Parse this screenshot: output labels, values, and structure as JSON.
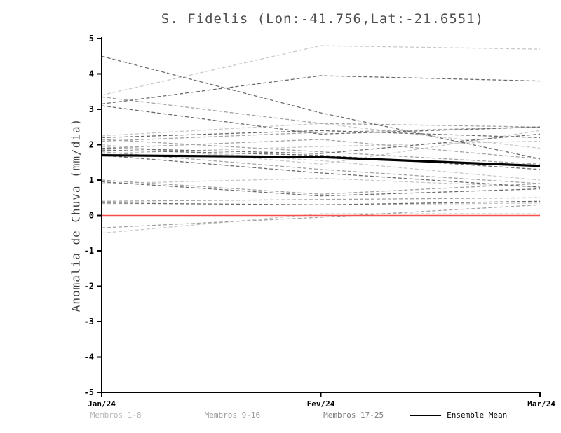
{
  "title": "S. Fidelis (Lon:-41.756,Lat:-21.6551)",
  "chart_data": {
    "type": "line",
    "title": "S. Fidelis (Lon:-41.756,Lat:-21.6551)",
    "ylabel": "Anomalia de Chuva (mm/dia)",
    "xlabel": "",
    "x_labels": [
      "Jan/24",
      "Fev/24",
      "Mar/24"
    ],
    "ylim": [
      -5,
      5
    ],
    "yticks": [
      -5,
      -4,
      -3,
      -2,
      -1,
      0,
      1,
      2,
      3,
      4,
      5
    ],
    "grid": false,
    "legend_position": "bottom",
    "zero_line": {
      "value": 0,
      "color": "#fb4b4b"
    },
    "groups": [
      {
        "name": "Membros 1-8",
        "color": "#c9c9c9",
        "dash": "5 3",
        "members": [
          [
            3.4,
            4.8,
            4.7
          ],
          [
            2.25,
            2.6,
            1.9
          ],
          [
            1.95,
            1.55,
            1.0
          ],
          [
            0.9,
            1.05,
            0.8
          ],
          [
            0.3,
            0.3,
            0.35
          ],
          [
            -0.5,
            0.05,
            0.05
          ],
          [
            2.0,
            1.45,
            2.4
          ],
          [
            1.75,
            1.95,
            2.1
          ]
        ]
      },
      {
        "name": "Membros 9-16",
        "color": "#a3a3a3",
        "dash": "5 3",
        "members": [
          [
            3.35,
            2.6,
            2.5
          ],
          [
            2.1,
            2.35,
            2.5
          ],
          [
            1.8,
            1.3,
            0.9
          ],
          [
            0.4,
            0.45,
            0.5
          ],
          [
            -0.35,
            -0.05,
            0.3
          ],
          [
            1.9,
            2.15,
            1.6
          ],
          [
            2.15,
            1.8,
            1.45
          ],
          [
            1.0,
            0.6,
            0.9
          ]
        ]
      },
      {
        "name": "Membros 17-25",
        "color": "#6b6b6b",
        "dash": "5 3",
        "members": [
          [
            4.5,
            2.9,
            1.6
          ],
          [
            3.15,
            3.95,
            3.8
          ],
          [
            3.1,
            2.3,
            2.5
          ],
          [
            2.2,
            2.4,
            2.2
          ],
          [
            1.85,
            1.7,
            1.3
          ],
          [
            1.7,
            1.2,
            0.8
          ],
          [
            0.35,
            0.3,
            0.4
          ],
          [
            1.9,
            1.75,
            2.3
          ],
          [
            0.95,
            0.55,
            0.75
          ]
        ]
      }
    ],
    "ensemble_mean": {
      "name": "Ensemble Mean",
      "color": "#000000",
      "values": [
        1.7,
        1.65,
        1.4
      ]
    }
  },
  "legend": {
    "items": [
      {
        "label": "Membros 1-8",
        "color": "#b5b5b5",
        "style": "dashed"
      },
      {
        "label": "Membros 9-16",
        "color": "#9a9a9a",
        "style": "dashed"
      },
      {
        "label": "Membros 17-25",
        "color": "#7d7d7d",
        "style": "dashed"
      },
      {
        "label": "Ensemble Mean",
        "color": "#000000",
        "style": "solid"
      }
    ]
  }
}
